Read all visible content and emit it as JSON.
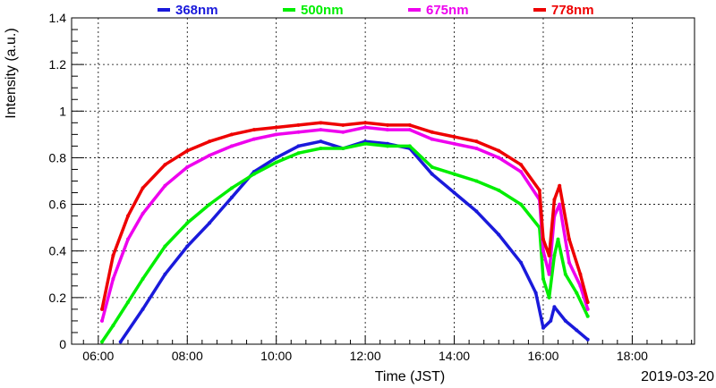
{
  "chart_data": {
    "type": "line",
    "xlabel": "Time (JST)",
    "ylabel": "Intensity (a.u.)",
    "date_label": "2019-03-20",
    "xlim": [
      "05:24",
      "19:24"
    ],
    "ylim": [
      0,
      1.4
    ],
    "x_ticks": [
      "06:00",
      "08:00",
      "10:00",
      "12:00",
      "14:00",
      "16:00",
      "18:00"
    ],
    "y_ticks": [
      "0",
      "0.2",
      "0.4",
      "0.6",
      "0.8",
      "1",
      "1.2",
      "1.4"
    ],
    "grid": true,
    "legend_position": "top",
    "series": [
      {
        "name": "368nm",
        "color": "#1a1adb",
        "points": [
          [
            "06:30",
            0.01
          ],
          [
            "07:00",
            0.15
          ],
          [
            "07:30",
            0.3
          ],
          [
            "08:00",
            0.42
          ],
          [
            "08:30",
            0.52
          ],
          [
            "09:00",
            0.63
          ],
          [
            "09:30",
            0.74
          ],
          [
            "10:00",
            0.8
          ],
          [
            "10:30",
            0.85
          ],
          [
            "11:00",
            0.87
          ],
          [
            "11:30",
            0.84
          ],
          [
            "12:00",
            0.87
          ],
          [
            "12:30",
            0.86
          ],
          [
            "13:00",
            0.84
          ],
          [
            "13:30",
            0.73
          ],
          [
            "14:00",
            0.65
          ],
          [
            "14:30",
            0.57
          ],
          [
            "15:00",
            0.47
          ],
          [
            "15:30",
            0.35
          ],
          [
            "15:50",
            0.22
          ],
          [
            "16:00",
            0.07
          ],
          [
            "16:10",
            0.1
          ],
          [
            "16:15",
            0.16
          ],
          [
            "16:30",
            0.1
          ],
          [
            "16:45",
            0.06
          ],
          [
            "17:00",
            0.02
          ]
        ]
      },
      {
        "name": "500nm",
        "color": "#00ee00",
        "points": [
          [
            "06:05",
            0.01
          ],
          [
            "06:20",
            0.08
          ],
          [
            "06:40",
            0.18
          ],
          [
            "07:00",
            0.28
          ],
          [
            "07:30",
            0.42
          ],
          [
            "08:00",
            0.52
          ],
          [
            "08:30",
            0.6
          ],
          [
            "09:00",
            0.67
          ],
          [
            "09:30",
            0.73
          ],
          [
            "10:00",
            0.78
          ],
          [
            "10:30",
            0.82
          ],
          [
            "11:00",
            0.84
          ],
          [
            "11:30",
            0.84
          ],
          [
            "12:00",
            0.86
          ],
          [
            "12:30",
            0.85
          ],
          [
            "13:00",
            0.85
          ],
          [
            "13:30",
            0.76
          ],
          [
            "14:00",
            0.73
          ],
          [
            "14:30",
            0.7
          ],
          [
            "15:00",
            0.66
          ],
          [
            "15:30",
            0.6
          ],
          [
            "15:55",
            0.5
          ],
          [
            "16:00",
            0.28
          ],
          [
            "16:08",
            0.2
          ],
          [
            "16:15",
            0.38
          ],
          [
            "16:20",
            0.45
          ],
          [
            "16:30",
            0.3
          ],
          [
            "16:45",
            0.22
          ],
          [
            "17:00",
            0.12
          ]
        ]
      },
      {
        "name": "675nm",
        "color": "#ee00ee",
        "points": [
          [
            "06:05",
            0.1
          ],
          [
            "06:20",
            0.28
          ],
          [
            "06:40",
            0.45
          ],
          [
            "07:00",
            0.56
          ],
          [
            "07:30",
            0.68
          ],
          [
            "08:00",
            0.76
          ],
          [
            "08:30",
            0.81
          ],
          [
            "09:00",
            0.85
          ],
          [
            "09:30",
            0.88
          ],
          [
            "10:00",
            0.9
          ],
          [
            "10:30",
            0.91
          ],
          [
            "11:00",
            0.92
          ],
          [
            "11:30",
            0.91
          ],
          [
            "12:00",
            0.93
          ],
          [
            "12:30",
            0.92
          ],
          [
            "13:00",
            0.92
          ],
          [
            "13:30",
            0.88
          ],
          [
            "14:00",
            0.86
          ],
          [
            "14:30",
            0.84
          ],
          [
            "15:00",
            0.8
          ],
          [
            "15:30",
            0.74
          ],
          [
            "15:55",
            0.62
          ],
          [
            "16:00",
            0.4
          ],
          [
            "16:08",
            0.3
          ],
          [
            "16:15",
            0.55
          ],
          [
            "16:22",
            0.6
          ],
          [
            "16:35",
            0.35
          ],
          [
            "16:50",
            0.25
          ],
          [
            "17:00",
            0.15
          ]
        ]
      },
      {
        "name": "778nm",
        "color": "#ee0000",
        "points": [
          [
            "06:05",
            0.15
          ],
          [
            "06:20",
            0.38
          ],
          [
            "06:40",
            0.55
          ],
          [
            "07:00",
            0.67
          ],
          [
            "07:30",
            0.77
          ],
          [
            "08:00",
            0.83
          ],
          [
            "08:30",
            0.87
          ],
          [
            "09:00",
            0.9
          ],
          [
            "09:30",
            0.92
          ],
          [
            "10:00",
            0.93
          ],
          [
            "10:30",
            0.94
          ],
          [
            "11:00",
            0.95
          ],
          [
            "11:30",
            0.94
          ],
          [
            "12:00",
            0.95
          ],
          [
            "12:30",
            0.94
          ],
          [
            "13:00",
            0.94
          ],
          [
            "13:30",
            0.91
          ],
          [
            "14:00",
            0.89
          ],
          [
            "14:30",
            0.87
          ],
          [
            "15:00",
            0.83
          ],
          [
            "15:30",
            0.77
          ],
          [
            "15:55",
            0.66
          ],
          [
            "16:00",
            0.45
          ],
          [
            "16:08",
            0.38
          ],
          [
            "16:15",
            0.62
          ],
          [
            "16:22",
            0.68
          ],
          [
            "16:35",
            0.45
          ],
          [
            "16:50",
            0.3
          ],
          [
            "17:00",
            0.18
          ]
        ]
      }
    ]
  }
}
